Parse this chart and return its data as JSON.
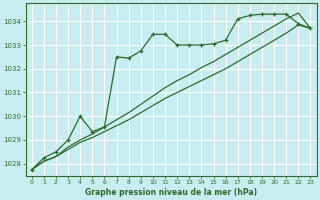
{
  "title": "Graphe pression niveau de la mer (hPa)",
  "bg_color": "#c8ecf0",
  "grid_color": "#b0d8e0",
  "line_color": "#2d6b2d",
  "xlim": [
    -0.5,
    23.5
  ],
  "ylim": [
    1027.5,
    1034.75
  ],
  "yticks": [
    1028,
    1029,
    1030,
    1031,
    1032,
    1033,
    1034
  ],
  "xticks": [
    0,
    1,
    2,
    3,
    4,
    5,
    6,
    7,
    8,
    9,
    10,
    11,
    12,
    13,
    14,
    15,
    16,
    17,
    18,
    19,
    20,
    21,
    22,
    23
  ],
  "series1_x": [
    0,
    1,
    2,
    3,
    4,
    5,
    6,
    7,
    8,
    9,
    10,
    11,
    12,
    13,
    14,
    15,
    16,
    17,
    18,
    19,
    20,
    21,
    22,
    23
  ],
  "series1_y": [
    1027.75,
    1028.25,
    1028.5,
    1029.0,
    1030.0,
    1029.35,
    1029.55,
    1032.5,
    1032.45,
    1032.75,
    1033.45,
    1033.45,
    1033.0,
    1033.0,
    1033.0,
    1033.05,
    1033.2,
    1034.1,
    1034.25,
    1034.3,
    1034.3,
    1034.3,
    1033.9,
    1033.7
  ],
  "series2_x": [
    0,
    1,
    2,
    3,
    4,
    5,
    6,
    7,
    8,
    9,
    10,
    11,
    12,
    13,
    14,
    15,
    16,
    17,
    18,
    19,
    20,
    21,
    22,
    23
  ],
  "series2_y": [
    1027.75,
    1028.1,
    1028.3,
    1028.6,
    1028.9,
    1029.1,
    1029.35,
    1029.6,
    1029.85,
    1030.15,
    1030.45,
    1030.75,
    1031.0,
    1031.25,
    1031.5,
    1031.75,
    1032.0,
    1032.3,
    1032.6,
    1032.9,
    1033.2,
    1033.5,
    1033.85,
    1033.7
  ],
  "series3_x": [
    0,
    1,
    2,
    3,
    4,
    5,
    6,
    7,
    8,
    9,
    10,
    11,
    12,
    13,
    14,
    15,
    16,
    17,
    18,
    19,
    20,
    21,
    22,
    23
  ],
  "series3_y": [
    1027.75,
    1028.1,
    1028.3,
    1028.7,
    1029.0,
    1029.25,
    1029.55,
    1029.85,
    1030.15,
    1030.5,
    1030.85,
    1031.2,
    1031.5,
    1031.75,
    1032.05,
    1032.3,
    1032.6,
    1032.9,
    1033.2,
    1033.5,
    1033.8,
    1034.1,
    1034.35,
    1033.7
  ]
}
